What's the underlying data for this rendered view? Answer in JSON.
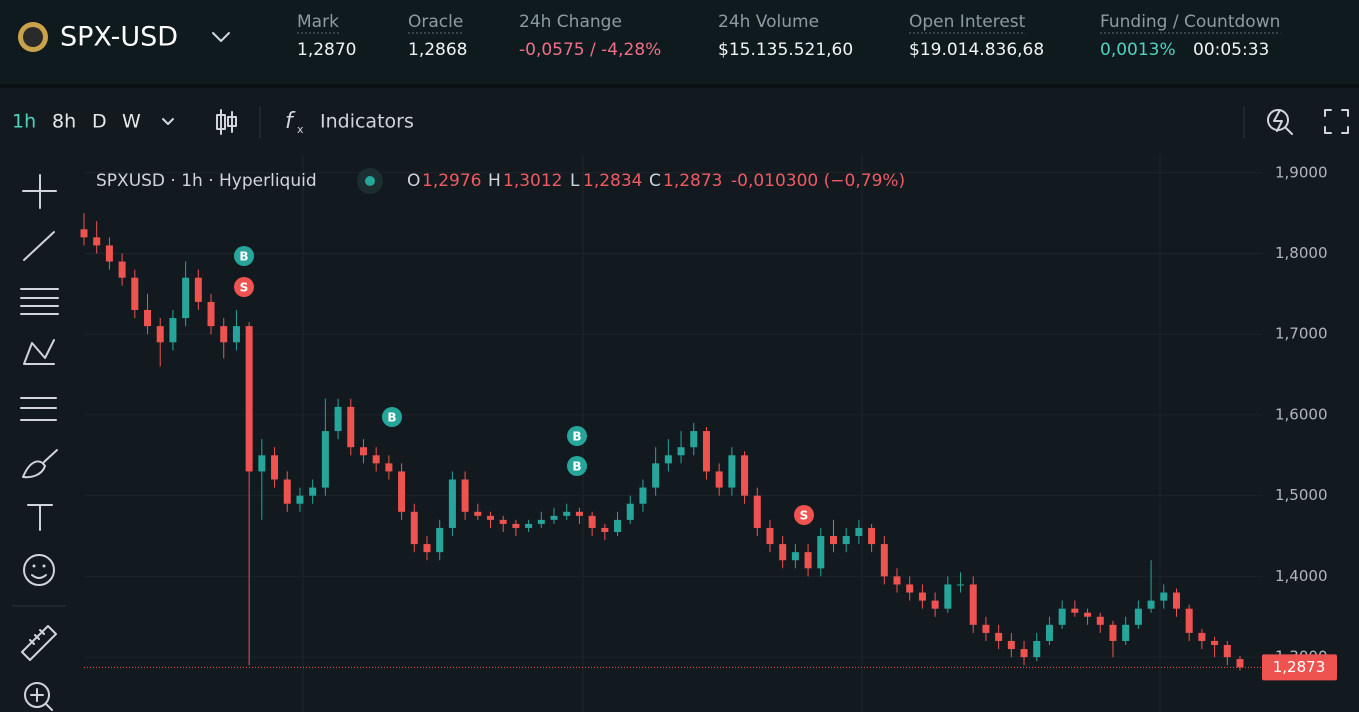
{
  "header": {
    "symbol": "SPX-USD",
    "stats": [
      {
        "label": "Mark",
        "value": "1,2870"
      },
      {
        "label": "Oracle",
        "value": "1,2868"
      },
      {
        "label": "24h Change",
        "value": "-0,0575 / -4,28%"
      },
      {
        "label": "24h Volume",
        "value": "$15.135.521,60"
      },
      {
        "label": "Open Interest",
        "value": "$19.014.836,68"
      },
      {
        "label": "Funding / Countdown",
        "value": "0,0013%",
        "countdown": "00:05:33"
      }
    ]
  },
  "toolbar": {
    "intervals": [
      "1h",
      "8h",
      "D",
      "W"
    ],
    "indicators": "Indicators"
  },
  "legend": {
    "title": "SPXUSD · 1h · Hyperliquid",
    "items": [
      {
        "key": "O",
        "value": "1,2976"
      },
      {
        "key": "H",
        "value": "1,3012"
      },
      {
        "key": "L",
        "value": "1,2834"
      },
      {
        "key": "C",
        "value": "1,2873"
      }
    ],
    "change": "-0,010300 (−0,79%)"
  },
  "chart_data": {
    "type": "candlestick",
    "up_color": "#26a69a",
    "down_color": "#ef5350",
    "ylim": [
      1.232,
      1.922
    ],
    "yticks": [
      {
        "value": 1.9,
        "label": "1,9000"
      },
      {
        "value": 1.8,
        "label": "1,8000"
      },
      {
        "value": 1.7,
        "label": "1,7000"
      },
      {
        "value": 1.6,
        "label": "1,6000"
      },
      {
        "value": 1.5,
        "label": "1,5000"
      },
      {
        "value": 1.4,
        "label": "1,4000"
      },
      {
        "value": 1.3,
        "label": "1,3000"
      }
    ],
    "grid": true,
    "last_price": {
      "value": 1.2873,
      "label": "1,2873"
    },
    "markers": [
      {
        "label": "B"
      },
      {
        "label": "S"
      },
      {
        "label": "B"
      },
      {
        "label": "B"
      },
      {
        "label": "B"
      },
      {
        "label": "S"
      }
    ],
    "candles": [
      [
        1.83,
        1.85,
        1.81,
        1.82
      ],
      [
        1.82,
        1.84,
        1.8,
        1.81
      ],
      [
        1.81,
        1.82,
        1.78,
        1.79
      ],
      [
        1.79,
        1.8,
        1.76,
        1.77
      ],
      [
        1.77,
        1.78,
        1.72,
        1.73
      ],
      [
        1.73,
        1.75,
        1.7,
        1.71
      ],
      [
        1.71,
        1.72,
        1.66,
        1.69
      ],
      [
        1.69,
        1.73,
        1.68,
        1.72
      ],
      [
        1.72,
        1.79,
        1.71,
        1.77
      ],
      [
        1.77,
        1.78,
        1.73,
        1.74
      ],
      [
        1.74,
        1.75,
        1.7,
        1.71
      ],
      [
        1.71,
        1.72,
        1.67,
        1.69
      ],
      [
        1.69,
        1.73,
        1.68,
        1.71
      ],
      [
        1.71,
        1.715,
        1.29,
        1.53
      ],
      [
        1.53,
        1.57,
        1.47,
        1.55
      ],
      [
        1.55,
        1.56,
        1.51,
        1.52
      ],
      [
        1.52,
        1.53,
        1.48,
        1.49
      ],
      [
        1.49,
        1.51,
        1.48,
        1.5
      ],
      [
        1.5,
        1.52,
        1.49,
        1.51
      ],
      [
        1.51,
        1.62,
        1.5,
        1.58
      ],
      [
        1.58,
        1.62,
        1.57,
        1.61
      ],
      [
        1.61,
        1.62,
        1.55,
        1.56
      ],
      [
        1.56,
        1.57,
        1.54,
        1.55
      ],
      [
        1.55,
        1.56,
        1.53,
        1.54
      ],
      [
        1.54,
        1.55,
        1.52,
        1.53
      ],
      [
        1.53,
        1.54,
        1.47,
        1.48
      ],
      [
        1.48,
        1.49,
        1.43,
        1.44
      ],
      [
        1.44,
        1.45,
        1.42,
        1.43
      ],
      [
        1.43,
        1.47,
        1.42,
        1.46
      ],
      [
        1.46,
        1.53,
        1.45,
        1.52
      ],
      [
        1.52,
        1.53,
        1.47,
        1.48
      ],
      [
        1.48,
        1.49,
        1.47,
        1.475
      ],
      [
        1.475,
        1.48,
        1.46,
        1.47
      ],
      [
        1.47,
        1.475,
        1.455,
        1.465
      ],
      [
        1.465,
        1.47,
        1.45,
        1.46
      ],
      [
        1.46,
        1.47,
        1.455,
        1.465
      ],
      [
        1.465,
        1.48,
        1.46,
        1.47
      ],
      [
        1.47,
        1.485,
        1.465,
        1.475
      ],
      [
        1.475,
        1.49,
        1.47,
        1.48
      ],
      [
        1.48,
        1.485,
        1.465,
        1.475
      ],
      [
        1.475,
        1.48,
        1.45,
        1.46
      ],
      [
        1.46,
        1.465,
        1.445,
        1.455
      ],
      [
        1.455,
        1.48,
        1.45,
        1.47
      ],
      [
        1.47,
        1.5,
        1.465,
        1.49
      ],
      [
        1.49,
        1.52,
        1.48,
        1.51
      ],
      [
        1.51,
        1.56,
        1.5,
        1.54
      ],
      [
        1.54,
        1.57,
        1.53,
        1.55
      ],
      [
        1.55,
        1.58,
        1.54,
        1.56
      ],
      [
        1.56,
        1.59,
        1.55,
        1.58
      ],
      [
        1.58,
        1.585,
        1.52,
        1.53
      ],
      [
        1.53,
        1.54,
        1.5,
        1.51
      ],
      [
        1.51,
        1.56,
        1.5,
        1.55
      ],
      [
        1.55,
        1.555,
        1.49,
        1.5
      ],
      [
        1.5,
        1.51,
        1.45,
        1.46
      ],
      [
        1.46,
        1.47,
        1.43,
        1.44
      ],
      [
        1.44,
        1.45,
        1.41,
        1.42
      ],
      [
        1.42,
        1.44,
        1.41,
        1.43
      ],
      [
        1.43,
        1.44,
        1.4,
        1.41
      ],
      [
        1.41,
        1.46,
        1.4,
        1.45
      ],
      [
        1.45,
        1.47,
        1.43,
        1.44
      ],
      [
        1.44,
        1.46,
        1.43,
        1.45
      ],
      [
        1.45,
        1.47,
        1.44,
        1.46
      ],
      [
        1.46,
        1.465,
        1.43,
        1.44
      ],
      [
        1.44,
        1.45,
        1.39,
        1.4
      ],
      [
        1.4,
        1.41,
        1.38,
        1.39
      ],
      [
        1.39,
        1.4,
        1.37,
        1.38
      ],
      [
        1.38,
        1.39,
        1.36,
        1.37
      ],
      [
        1.37,
        1.38,
        1.35,
        1.36
      ],
      [
        1.36,
        1.4,
        1.355,
        1.39
      ],
      [
        1.39,
        1.405,
        1.38,
        1.39
      ],
      [
        1.39,
        1.4,
        1.33,
        1.34
      ],
      [
        1.34,
        1.35,
        1.32,
        1.33
      ],
      [
        1.33,
        1.34,
        1.31,
        1.32
      ],
      [
        1.32,
        1.33,
        1.3,
        1.31
      ],
      [
        1.31,
        1.32,
        1.29,
        1.3
      ],
      [
        1.3,
        1.33,
        1.295,
        1.32
      ],
      [
        1.32,
        1.35,
        1.315,
        1.34
      ],
      [
        1.34,
        1.37,
        1.335,
        1.36
      ],
      [
        1.36,
        1.37,
        1.35,
        1.355
      ],
      [
        1.355,
        1.36,
        1.34,
        1.35
      ],
      [
        1.35,
        1.355,
        1.33,
        1.34
      ],
      [
        1.34,
        1.345,
        1.3,
        1.32
      ],
      [
        1.32,
        1.35,
        1.315,
        1.34
      ],
      [
        1.34,
        1.37,
        1.335,
        1.36
      ],
      [
        1.36,
        1.42,
        1.355,
        1.37
      ],
      [
        1.37,
        1.39,
        1.36,
        1.38
      ],
      [
        1.38,
        1.385,
        1.35,
        1.36
      ],
      [
        1.36,
        1.365,
        1.32,
        1.33
      ],
      [
        1.33,
        1.335,
        1.31,
        1.32
      ],
      [
        1.32,
        1.325,
        1.3,
        1.315
      ],
      [
        1.315,
        1.32,
        1.29,
        1.3
      ],
      [
        1.2976,
        1.3012,
        1.2834,
        1.2873
      ]
    ]
  }
}
